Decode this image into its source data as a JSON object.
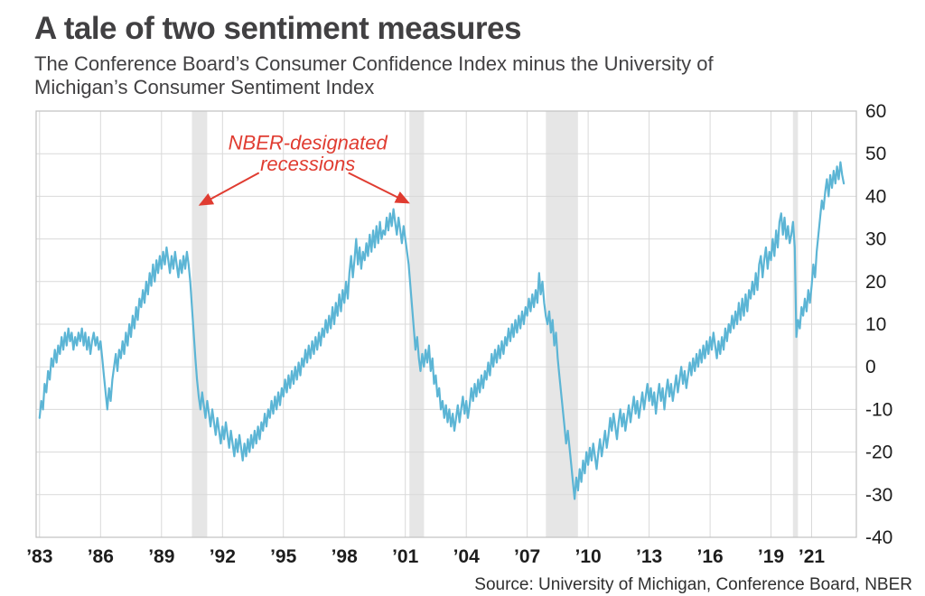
{
  "header": {
    "title": "A tale of two sentiment measures",
    "subtitle_line1": "The Conference Board’s Consumer Confidence Index minus the University of",
    "subtitle_line2": "Michigan’s Consumer Sentiment Index"
  },
  "footer": {
    "source": "Source: University of Michigan, Conference Board, NBER"
  },
  "chart_data": {
    "type": "line",
    "title": "A tale of two sentiment measures",
    "subtitle": "The Conference Board’s Consumer Confidence Index minus the University of Michigan’s Consumer Sentiment Index",
    "series_name": "Conference Board Consumer Confidence minus Michigan Consumer Sentiment",
    "frequency": "monthly",
    "start_year": 1983,
    "x_range": [
      1982.83,
      2023.2
    ],
    "ylim": [
      -40,
      60
    ],
    "y_ticks": [
      60,
      50,
      40,
      30,
      20,
      10,
      0,
      -10,
      -20,
      -30,
      -40
    ],
    "x_ticks": [
      {
        "year": 1983,
        "label": "’83"
      },
      {
        "year": 1986,
        "label": "’86"
      },
      {
        "year": 1989,
        "label": "’89"
      },
      {
        "year": 1992,
        "label": "’92"
      },
      {
        "year": 1995,
        "label": "’95"
      },
      {
        "year": 1998,
        "label": "’98"
      },
      {
        "year": 2001,
        "label": "’01"
      },
      {
        "year": 2004,
        "label": "’04"
      },
      {
        "year": 2007,
        "label": "’07"
      },
      {
        "year": 2010,
        "label": "’10"
      },
      {
        "year": 2013,
        "label": "’13"
      },
      {
        "year": 2016,
        "label": "’16"
      },
      {
        "year": 2019,
        "label": "’19"
      },
      {
        "year": 2021,
        "label": "’21"
      }
    ],
    "grid": true,
    "line_color": "#5CB5D5",
    "grid_color": "#d9d9d9",
    "border_color": "#c0c0c0",
    "band_color": "#e6e6e6",
    "recessions": [
      {
        "start": 1990.5,
        "end": 1991.25
      },
      {
        "start": 2001.2,
        "end": 2001.92
      },
      {
        "start": 2007.92,
        "end": 2009.5
      },
      {
        "start": 2020.08,
        "end": 2020.33
      }
    ],
    "annotation": {
      "text_line1": "NBER-designated",
      "text_line2": "recessions",
      "color": "#E03C31",
      "x": 1996.2,
      "y_line1": 51,
      "y_line2": 46,
      "arrows": [
        {
          "x1": 1993.8,
          "y1": 45.5,
          "x2": 1990.9,
          "y2": 38
        },
        {
          "x1": 1998.2,
          "y1": 45.5,
          "x2": 2001.15,
          "y2": 38.5
        }
      ]
    },
    "values": [
      -12,
      -8,
      -10,
      -4,
      -6,
      -1,
      -3,
      2,
      0,
      4,
      1,
      5,
      3,
      7,
      4,
      8,
      5,
      9,
      6,
      8,
      4,
      7,
      5,
      8,
      6,
      9,
      5,
      8,
      4,
      7,
      3,
      6,
      8,
      5,
      7,
      4,
      6,
      2,
      -2,
      -6,
      -10,
      -5,
      -8,
      -3,
      0,
      3,
      -1,
      4,
      2,
      6,
      3,
      8,
      5,
      10,
      7,
      12,
      9,
      14,
      11,
      16,
      14,
      18,
      15,
      20,
      17,
      22,
      19,
      24,
      20,
      25,
      22,
      26,
      23,
      27,
      24,
      28,
      25,
      22,
      26,
      23,
      27,
      24,
      21,
      25,
      22,
      26,
      23,
      27,
      24,
      20,
      14,
      8,
      2,
      -3,
      -7,
      -10,
      -6,
      -9,
      -12,
      -8,
      -11,
      -14,
      -10,
      -13,
      -16,
      -12,
      -15,
      -18,
      -14,
      -17,
      -13,
      -16,
      -19,
      -15,
      -18,
      -21,
      -17,
      -20,
      -16,
      -19,
      -22,
      -18,
      -21,
      -17,
      -20,
      -16,
      -19,
      -15,
      -18,
      -14,
      -17,
      -13,
      -15,
      -11,
      -14,
      -10,
      -12,
      -8,
      -11,
      -7,
      -10,
      -6,
      -9,
      -5,
      -7,
      -3,
      -6,
      -2,
      -5,
      -1,
      -4,
      0,
      -3,
      1,
      -2,
      2,
      0,
      4,
      1,
      5,
      2,
      6,
      3,
      7,
      4,
      8,
      5,
      9,
      7,
      11,
      8,
      12,
      9,
      14,
      10,
      15,
      12,
      17,
      13,
      18,
      15,
      20,
      16,
      22,
      26,
      21,
      25,
      30,
      24,
      28,
      23,
      27,
      25,
      29,
      26,
      31,
      27,
      32,
      28,
      33,
      29,
      34,
      30,
      32,
      31,
      35,
      32,
      36,
      33,
      37,
      34,
      31,
      35,
      32,
      29,
      33,
      30,
      27,
      24,
      19,
      14,
      9,
      4,
      7,
      2,
      -1,
      3,
      0,
      4,
      1,
      5,
      -1,
      2,
      -4,
      -2,
      -7,
      -5,
      -10,
      -8,
      -12,
      -9,
      -13,
      -10,
      -14,
      -11,
      -15,
      -12,
      -9,
      -13,
      -10,
      -7,
      -11,
      -8,
      -12,
      -9,
      -5,
      -8,
      -4,
      -7,
      -3,
      -6,
      -2,
      -5,
      -1,
      -3,
      1,
      -2,
      3,
      0,
      4,
      1,
      5,
      2,
      6,
      3,
      7,
      5,
      9,
      6,
      10,
      7,
      11,
      8,
      12,
      9,
      13,
      10,
      14,
      12,
      16,
      13,
      17,
      14,
      18,
      15,
      22,
      17,
      20,
      15,
      12,
      10,
      13,
      8,
      11,
      5,
      8,
      2,
      -2,
      -6,
      -10,
      -14,
      -18,
      -15,
      -19,
      -23,
      -27,
      -31,
      -26,
      -29,
      -24,
      -27,
      -22,
      -25,
      -20,
      -23,
      -19,
      -22,
      -18,
      -21,
      -24,
      -20,
      -17,
      -21,
      -18,
      -15,
      -19,
      -16,
      -12,
      -15,
      -11,
      -14,
      -17,
      -13,
      -10,
      -14,
      -11,
      -15,
      -12,
      -9,
      -13,
      -10,
      -7,
      -11,
      -8,
      -12,
      -9,
      -6,
      -10,
      -7,
      -4,
      -8,
      -5,
      -9,
      -6,
      -11,
      -7,
      -4,
      -8,
      -5,
      -10,
      -6,
      -3,
      -7,
      -4,
      -8,
      -5,
      -2,
      -6,
      -3,
      0,
      -4,
      -1,
      -5,
      -2,
      1,
      -2,
      2,
      -1,
      3,
      0,
      4,
      1,
      5,
      2,
      6,
      3,
      7,
      4,
      8,
      5,
      2,
      6,
      3,
      7,
      4,
      9,
      6,
      10,
      8,
      12,
      9,
      13,
      10,
      15,
      11,
      16,
      12,
      17,
      13,
      18,
      16,
      20,
      17,
      22,
      18,
      24,
      26,
      21,
      25,
      28,
      23,
      27,
      25,
      30,
      26,
      32,
      28,
      34,
      36,
      31,
      35,
      30,
      33,
      29,
      31,
      34,
      28,
      7,
      11,
      9,
      14,
      12,
      16,
      13,
      18,
      15,
      19,
      24,
      21,
      27,
      31,
      35,
      39,
      37,
      41,
      44,
      40,
      45,
      42,
      46,
      43,
      47,
      44,
      48,
      45,
      43
    ]
  }
}
